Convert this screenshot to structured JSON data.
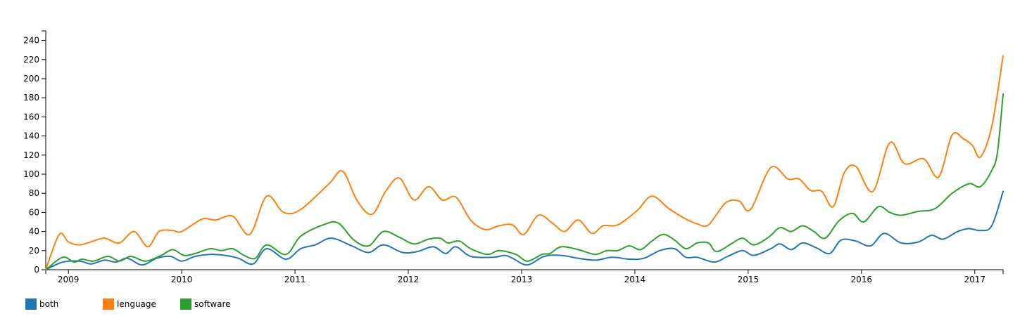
{
  "chart_data": {
    "type": "line",
    "title": "",
    "xlabel": "",
    "ylabel": "",
    "xlim": [
      2008.8,
      2017.25
    ],
    "ylim": [
      0,
      250
    ],
    "y_ticks": [
      0,
      20,
      40,
      60,
      80,
      100,
      120,
      140,
      160,
      180,
      200,
      220,
      240
    ],
    "x_ticks": [
      {
        "value": 2009,
        "label": "2009"
      },
      {
        "value": 2010,
        "label": "2010"
      },
      {
        "value": 2011,
        "label": "2011"
      },
      {
        "value": 2012,
        "label": "2012"
      },
      {
        "value": 2013,
        "label": "2013"
      },
      {
        "value": 2014,
        "label": "2014"
      },
      {
        "value": 2015,
        "label": "2015"
      },
      {
        "value": 2016,
        "label": "2016"
      },
      {
        "value": 2017,
        "label": "2017"
      }
    ],
    "legend_position": "bottom-left",
    "grid": false,
    "series": [
      {
        "name": "both",
        "color": "#1f77b4",
        "points": [
          [
            2008.8,
            0
          ],
          [
            2008.95,
            8
          ],
          [
            2009.1,
            9
          ],
          [
            2009.2,
            6
          ],
          [
            2009.32,
            10
          ],
          [
            2009.42,
            8
          ],
          [
            2009.52,
            12
          ],
          [
            2009.65,
            5
          ],
          [
            2009.78,
            12
          ],
          [
            2009.9,
            14
          ],
          [
            2010,
            9
          ],
          [
            2010.12,
            14
          ],
          [
            2010.25,
            16
          ],
          [
            2010.38,
            15
          ],
          [
            2010.5,
            12
          ],
          [
            2010.63,
            6
          ],
          [
            2010.75,
            22
          ],
          [
            2010.92,
            11
          ],
          [
            2011.05,
            22
          ],
          [
            2011.18,
            26
          ],
          [
            2011.32,
            33
          ],
          [
            2011.5,
            25
          ],
          [
            2011.65,
            18
          ],
          [
            2011.78,
            26
          ],
          [
            2011.95,
            18
          ],
          [
            2012.08,
            19
          ],
          [
            2012.22,
            24
          ],
          [
            2012.33,
            17
          ],
          [
            2012.42,
            24
          ],
          [
            2012.55,
            14
          ],
          [
            2012.75,
            13
          ],
          [
            2012.85,
            15
          ],
          [
            2012.92,
            12
          ],
          [
            2013.05,
            5
          ],
          [
            2013.2,
            14
          ],
          [
            2013.35,
            15
          ],
          [
            2013.5,
            12
          ],
          [
            2013.65,
            10
          ],
          [
            2013.8,
            13
          ],
          [
            2013.95,
            11
          ],
          [
            2014.08,
            12
          ],
          [
            2014.22,
            20
          ],
          [
            2014.35,
            22
          ],
          [
            2014.45,
            13
          ],
          [
            2014.55,
            13
          ],
          [
            2014.7,
            8
          ],
          [
            2014.82,
            14
          ],
          [
            2014.95,
            20
          ],
          [
            2015.05,
            15
          ],
          [
            2015.2,
            22
          ],
          [
            2015.28,
            27
          ],
          [
            2015.38,
            21
          ],
          [
            2015.48,
            28
          ],
          [
            2015.6,
            23
          ],
          [
            2015.72,
            17
          ],
          [
            2015.82,
            31
          ],
          [
            2015.95,
            30
          ],
          [
            2016.08,
            25
          ],
          [
            2016.2,
            38
          ],
          [
            2016.35,
            28
          ],
          [
            2016.5,
            29
          ],
          [
            2016.62,
            36
          ],
          [
            2016.72,
            32
          ],
          [
            2016.85,
            40
          ],
          [
            2016.95,
            43
          ],
          [
            2017.05,
            41
          ],
          [
            2017.15,
            46
          ],
          [
            2017.25,
            82
          ]
        ]
      },
      {
        "name": "lenguage",
        "color": "#ff7f0e",
        "points": [
          [
            2008.8,
            0
          ],
          [
            2008.92,
            37
          ],
          [
            2009,
            29
          ],
          [
            2009.1,
            26
          ],
          [
            2009.22,
            30
          ],
          [
            2009.32,
            33
          ],
          [
            2009.45,
            28
          ],
          [
            2009.58,
            40
          ],
          [
            2009.7,
            24
          ],
          [
            2009.8,
            40
          ],
          [
            2009.92,
            41
          ],
          [
            2010,
            40
          ],
          [
            2010.18,
            53
          ],
          [
            2010.3,
            52
          ],
          [
            2010.45,
            56
          ],
          [
            2010.6,
            37
          ],
          [
            2010.75,
            77
          ],
          [
            2010.9,
            60
          ],
          [
            2011.05,
            63
          ],
          [
            2011.3,
            90
          ],
          [
            2011.42,
            103
          ],
          [
            2011.55,
            72
          ],
          [
            2011.68,
            58
          ],
          [
            2011.8,
            82
          ],
          [
            2011.92,
            96
          ],
          [
            2012.05,
            73
          ],
          [
            2012.18,
            87
          ],
          [
            2012.3,
            73
          ],
          [
            2012.42,
            76
          ],
          [
            2012.55,
            52
          ],
          [
            2012.68,
            42
          ],
          [
            2012.8,
            46
          ],
          [
            2012.92,
            47
          ],
          [
            2013.02,
            37
          ],
          [
            2013.15,
            57
          ],
          [
            2013.28,
            48
          ],
          [
            2013.38,
            40
          ],
          [
            2013.5,
            52
          ],
          [
            2013.62,
            38
          ],
          [
            2013.72,
            46
          ],
          [
            2013.85,
            47
          ],
          [
            2014.02,
            62
          ],
          [
            2014.15,
            77
          ],
          [
            2014.3,
            64
          ],
          [
            2014.45,
            53
          ],
          [
            2014.55,
            48
          ],
          [
            2014.65,
            47
          ],
          [
            2014.8,
            70
          ],
          [
            2014.92,
            72
          ],
          [
            2015.02,
            63
          ],
          [
            2015.2,
            107
          ],
          [
            2015.35,
            95
          ],
          [
            2015.45,
            95
          ],
          [
            2015.55,
            83
          ],
          [
            2015.65,
            82
          ],
          [
            2015.75,
            66
          ],
          [
            2015.85,
            102
          ],
          [
            2015.95,
            108
          ],
          [
            2016.1,
            82
          ],
          [
            2016.25,
            133
          ],
          [
            2016.38,
            111
          ],
          [
            2016.55,
            116
          ],
          [
            2016.68,
            97
          ],
          [
            2016.8,
            141
          ],
          [
            2016.9,
            137
          ],
          [
            2016.98,
            130
          ],
          [
            2017.05,
            118
          ],
          [
            2017.15,
            150
          ],
          [
            2017.25,
            224
          ]
        ]
      },
      {
        "name": "software",
        "color": "#2ca02c",
        "points": [
          [
            2008.8,
            0
          ],
          [
            2008.95,
            13
          ],
          [
            2009.05,
            8
          ],
          [
            2009.12,
            11
          ],
          [
            2009.22,
            9
          ],
          [
            2009.35,
            14
          ],
          [
            2009.45,
            9
          ],
          [
            2009.55,
            14
          ],
          [
            2009.68,
            9
          ],
          [
            2009.82,
            15
          ],
          [
            2009.92,
            21
          ],
          [
            2010.02,
            15
          ],
          [
            2010.12,
            17
          ],
          [
            2010.25,
            22
          ],
          [
            2010.35,
            20
          ],
          [
            2010.45,
            22
          ],
          [
            2010.55,
            15
          ],
          [
            2010.65,
            12
          ],
          [
            2010.75,
            26
          ],
          [
            2010.92,
            16
          ],
          [
            2011.05,
            35
          ],
          [
            2011.25,
            47
          ],
          [
            2011.38,
            49
          ],
          [
            2011.52,
            31
          ],
          [
            2011.65,
            25
          ],
          [
            2011.78,
            40
          ],
          [
            2011.92,
            34
          ],
          [
            2012.05,
            27
          ],
          [
            2012.18,
            32
          ],
          [
            2012.28,
            33
          ],
          [
            2012.35,
            28
          ],
          [
            2012.45,
            30
          ],
          [
            2012.55,
            22
          ],
          [
            2012.7,
            16
          ],
          [
            2012.8,
            20
          ],
          [
            2012.95,
            16
          ],
          [
            2013.05,
            9
          ],
          [
            2013.18,
            16
          ],
          [
            2013.25,
            17
          ],
          [
            2013.35,
            24
          ],
          [
            2013.5,
            21
          ],
          [
            2013.65,
            16
          ],
          [
            2013.75,
            20
          ],
          [
            2013.85,
            20
          ],
          [
            2013.95,
            25
          ],
          [
            2014.05,
            21
          ],
          [
            2014.15,
            30
          ],
          [
            2014.25,
            37
          ],
          [
            2014.35,
            31
          ],
          [
            2014.45,
            22
          ],
          [
            2014.55,
            28
          ],
          [
            2014.65,
            28
          ],
          [
            2014.72,
            19
          ],
          [
            2014.85,
            27
          ],
          [
            2014.95,
            33
          ],
          [
            2015.05,
            26
          ],
          [
            2015.18,
            34
          ],
          [
            2015.28,
            44
          ],
          [
            2015.38,
            40
          ],
          [
            2015.48,
            46
          ],
          [
            2015.58,
            40
          ],
          [
            2015.68,
            33
          ],
          [
            2015.8,
            51
          ],
          [
            2015.92,
            59
          ],
          [
            2016.02,
            50
          ],
          [
            2016.15,
            66
          ],
          [
            2016.25,
            60
          ],
          [
            2016.35,
            57
          ],
          [
            2016.5,
            61
          ],
          [
            2016.65,
            64
          ],
          [
            2016.8,
            80
          ],
          [
            2016.95,
            90
          ],
          [
            2017.05,
            87
          ],
          [
            2017.15,
            104
          ],
          [
            2017.2,
            123
          ],
          [
            2017.25,
            184
          ]
        ]
      }
    ]
  }
}
